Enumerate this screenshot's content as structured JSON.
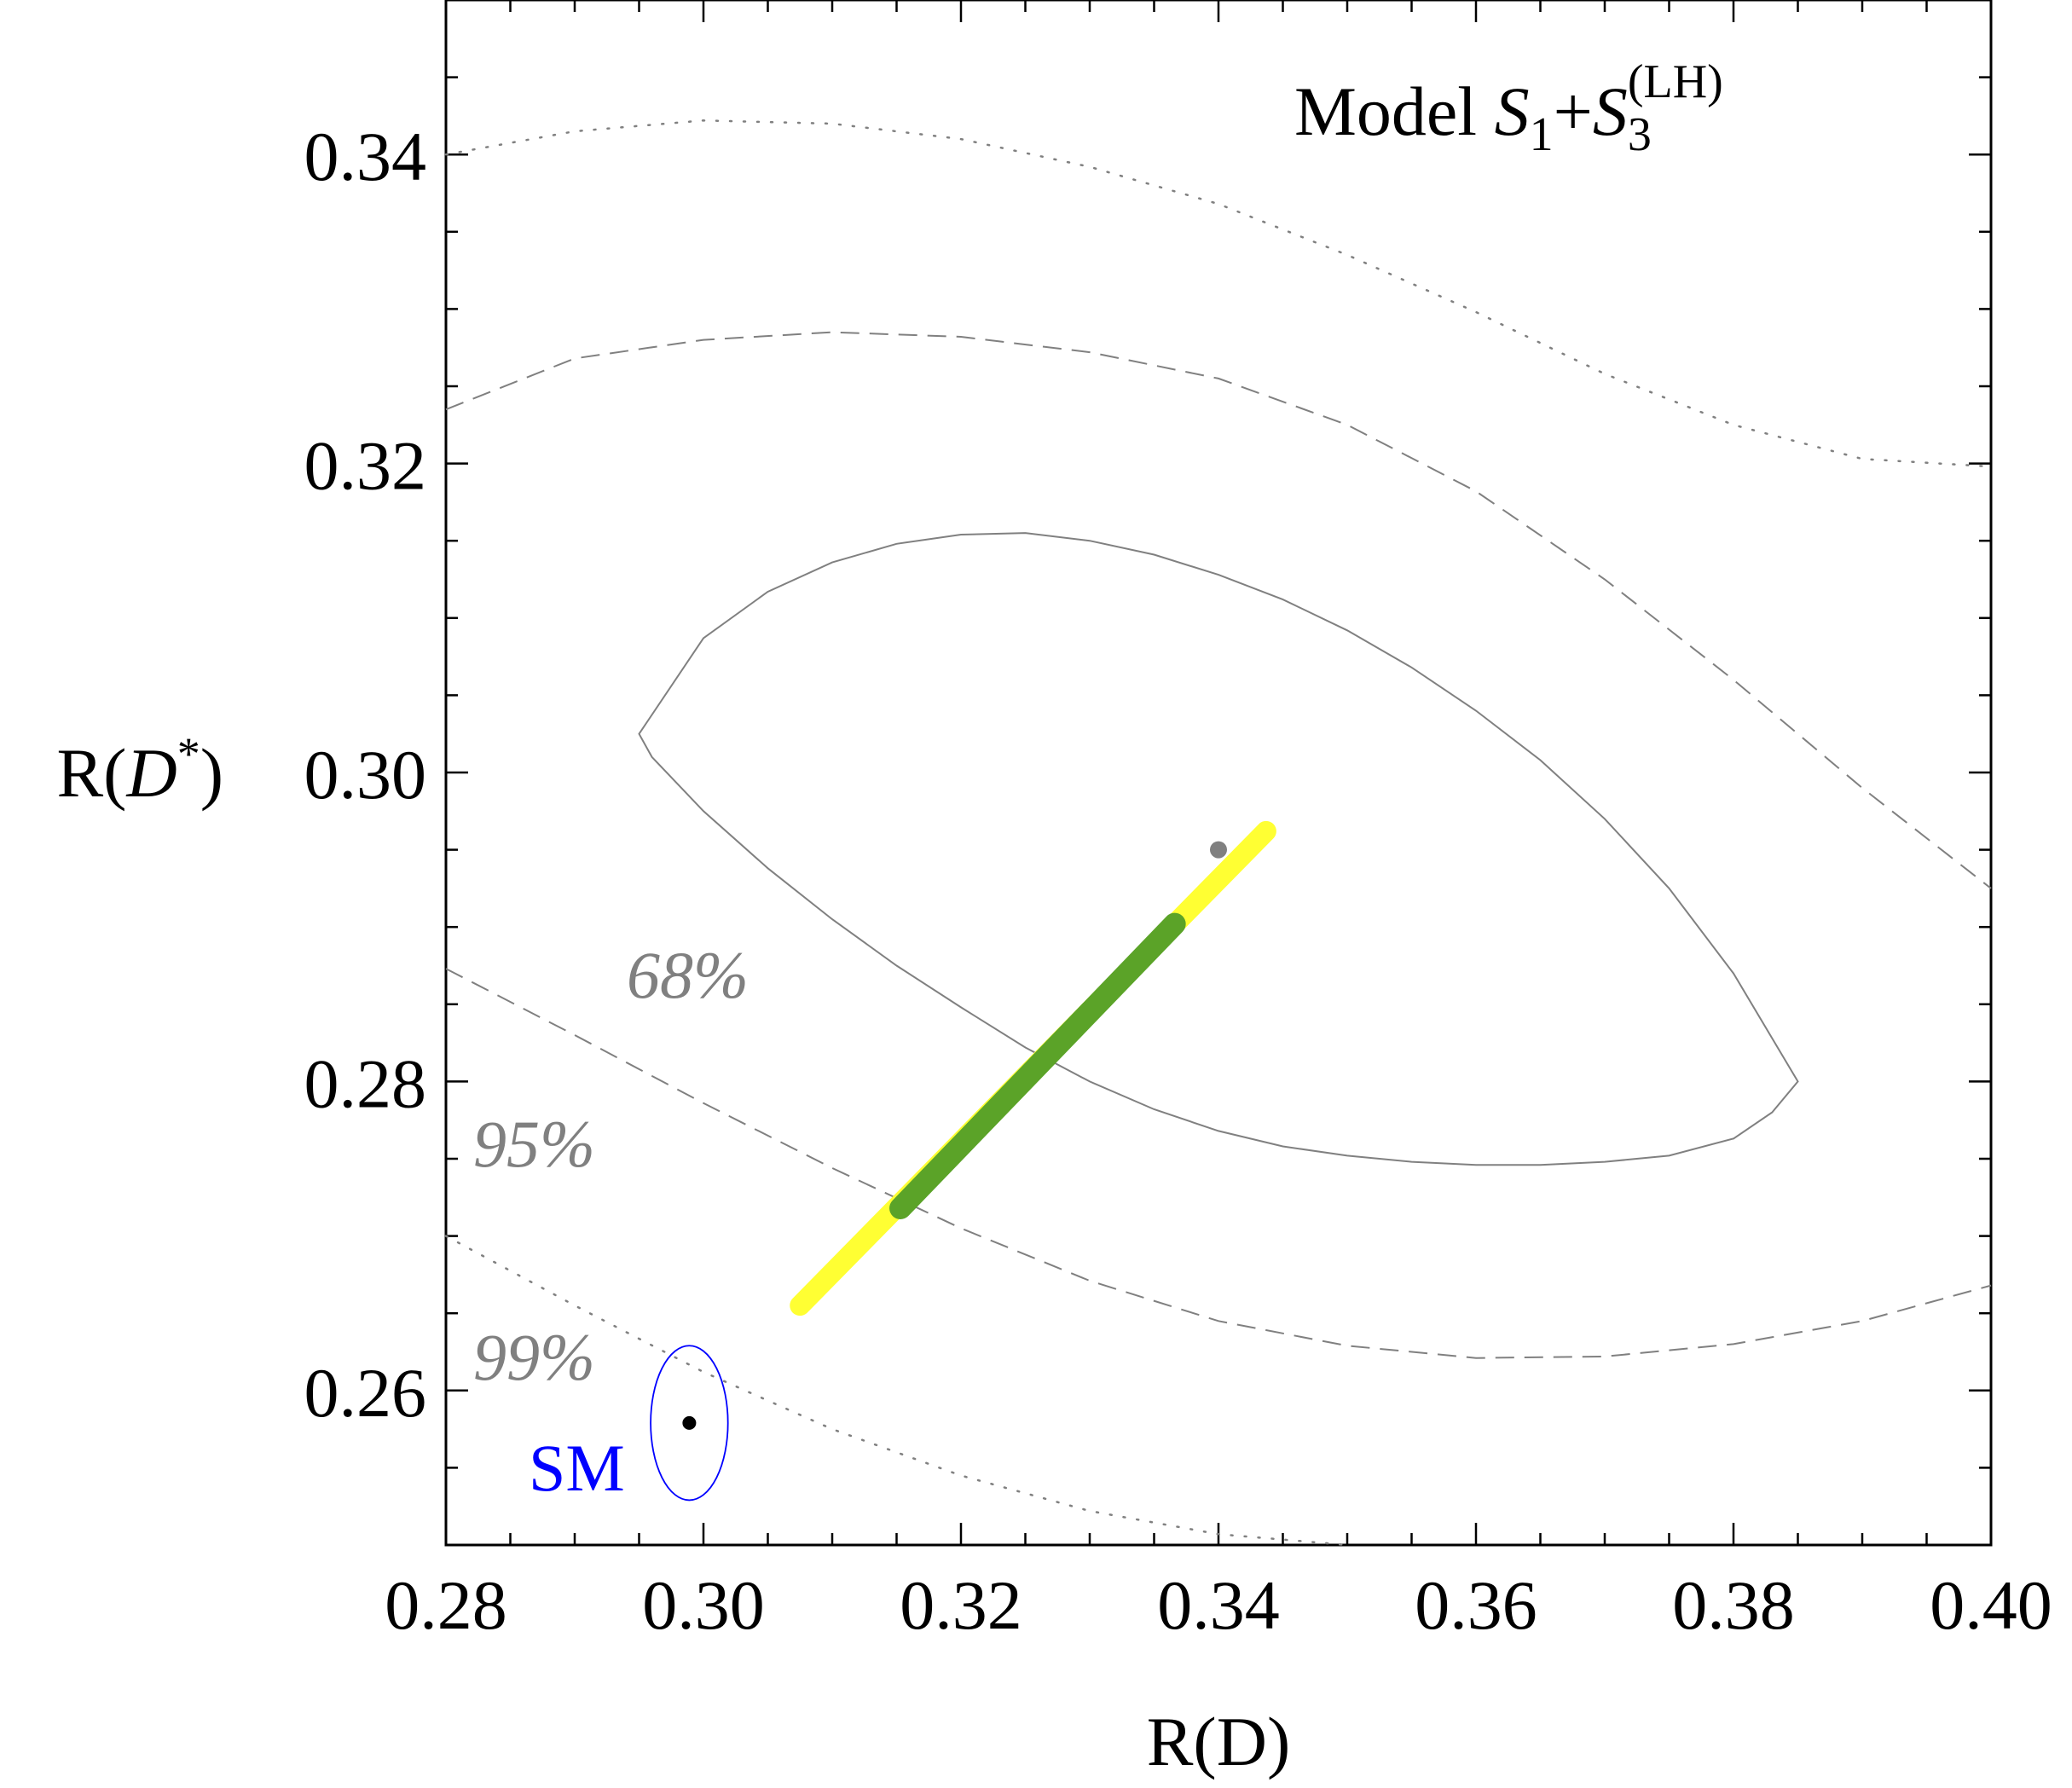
{
  "chart_data": {
    "type": "contour-scatter",
    "title": {
      "prefix": "Model ",
      "s1": "S",
      "s1_sub": "1",
      "plus": "+",
      "s3": "S",
      "s3_sub": "3",
      "s3_sup": "(LH)"
    },
    "xlabel": "R(D)",
    "ylabel": {
      "prefix": "R(",
      "var": "D",
      "sup": "*",
      "suffix": ")"
    },
    "xlim": [
      0.28,
      0.4
    ],
    "ylim": [
      0.25,
      0.35
    ],
    "x_ticks": [
      "0.28",
      "0.30",
      "0.32",
      "0.34",
      "0.36",
      "0.38",
      "0.40"
    ],
    "y_ticks": [
      "0.26",
      "0.28",
      "0.30",
      "0.32",
      "0.34"
    ],
    "x_tick_values": [
      0.28,
      0.3,
      0.32,
      0.34,
      0.36,
      0.38,
      0.4
    ],
    "y_tick_values": [
      0.26,
      0.28,
      0.3,
      0.32,
      0.34
    ],
    "experimental_fit": {
      "center": [
        0.34,
        0.295
      ],
      "ellipses": [
        {
          "level": "68%",
          "points": [
            [
              0.295,
              0.3025
            ],
            [
              0.3,
              0.3087
            ],
            [
              0.305,
              0.3117
            ],
            [
              0.31,
              0.3136
            ],
            [
              0.315,
              0.3148
            ],
            [
              0.32,
              0.3154
            ],
            [
              0.325,
              0.3155
            ],
            [
              0.33,
              0.315
            ],
            [
              0.335,
              0.3141
            ],
            [
              0.34,
              0.3128
            ],
            [
              0.345,
              0.3112
            ],
            [
              0.35,
              0.3092
            ],
            [
              0.355,
              0.3068
            ],
            [
              0.36,
              0.304
            ],
            [
              0.365,
              0.3008
            ],
            [
              0.37,
              0.297
            ],
            [
              0.375,
              0.2925
            ],
            [
              0.38,
              0.287
            ],
            [
              0.385,
              0.28
            ],
            [
              0.383,
              0.278
            ],
            [
              0.38,
              0.2763
            ],
            [
              0.375,
              0.2752
            ],
            [
              0.37,
              0.2748
            ],
            [
              0.365,
              0.2746
            ],
            [
              0.36,
              0.2746
            ],
            [
              0.355,
              0.2748
            ],
            [
              0.35,
              0.2752
            ],
            [
              0.345,
              0.2758
            ],
            [
              0.34,
              0.2768
            ],
            [
              0.335,
              0.2782
            ],
            [
              0.33,
              0.28
            ],
            [
              0.325,
              0.2822
            ],
            [
              0.32,
              0.2848
            ],
            [
              0.315,
              0.2875
            ],
            [
              0.31,
              0.2905
            ],
            [
              0.305,
              0.2938
            ],
            [
              0.3,
              0.2975
            ],
            [
              0.296,
              0.301
            ]
          ]
        },
        {
          "level": "95%",
          "points": [
            [
              0.28,
              0.3235
            ],
            [
              0.29,
              0.3268
            ],
            [
              0.3,
              0.328
            ],
            [
              0.31,
              0.3285
            ],
            [
              0.32,
              0.3282
            ],
            [
              0.33,
              0.3272
            ],
            [
              0.34,
              0.3255
            ],
            [
              0.35,
              0.3225
            ],
            [
              0.36,
              0.3182
            ],
            [
              0.37,
              0.3125
            ],
            [
              0.38,
              0.306
            ],
            [
              0.39,
              0.299
            ],
            [
              0.4,
              0.2925
            ]
          ],
          "lower": [
            [
              0.28,
              0.2873
            ],
            [
              0.29,
              0.283
            ],
            [
              0.3,
              0.2786
            ],
            [
              0.31,
              0.2744
            ],
            [
              0.32,
              0.2705
            ],
            [
              0.33,
              0.2671
            ],
            [
              0.34,
              0.2645
            ],
            [
              0.35,
              0.2629
            ],
            [
              0.36,
              0.2621
            ],
            [
              0.37,
              0.2622
            ],
            [
              0.38,
              0.263
            ],
            [
              0.39,
              0.2645
            ],
            [
              0.4,
              0.2668
            ]
          ]
        },
        {
          "level": "99%",
          "points": [
            [
              0.28,
              0.34
            ],
            [
              0.29,
              0.3415
            ],
            [
              0.3,
              0.3422
            ],
            [
              0.31,
              0.342
            ],
            [
              0.32,
              0.341
            ],
            [
              0.33,
              0.3392
            ],
            [
              0.34,
              0.3368
            ],
            [
              0.35,
              0.3335
            ],
            [
              0.36,
              0.3298
            ],
            [
              0.37,
              0.3258
            ],
            [
              0.38,
              0.3225
            ],
            [
              0.39,
              0.3203
            ],
            [
              0.4,
              0.3198
            ]
          ],
          "lower": [
            [
              0.28,
              0.27
            ],
            [
              0.29,
              0.2655
            ],
            [
              0.3,
              0.2612
            ],
            [
              0.31,
              0.2575
            ],
            [
              0.32,
              0.2545
            ],
            [
              0.33,
              0.2522
            ],
            [
              0.34,
              0.2507
            ],
            [
              0.35,
              0.25
            ]
          ]
        }
      ]
    },
    "model_band": {
      "yellow": {
        "from": [
          0.3075,
          0.2655
        ],
        "to": [
          0.3437,
          0.2962
        ],
        "color": "#ffff33"
      },
      "green": {
        "from": [
          0.3153,
          0.2718
        ],
        "to": [
          0.3366,
          0.2902
        ],
        "color": "#5ba328"
      }
    },
    "sm": {
      "label": "SM",
      "center": [
        0.2989,
        0.2579
      ],
      "rx": 0.003,
      "ry": 0.005,
      "color": "#0000ff"
    },
    "cl_labels": [
      "68%",
      "95%",
      "99%"
    ]
  }
}
